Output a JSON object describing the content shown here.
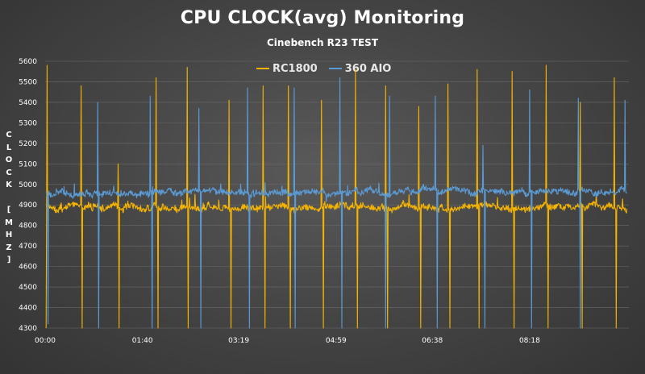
{
  "chart_data": {
    "type": "line",
    "title": "CPU CLOCK(avg) Monitoring",
    "subtitle": "Cinebench R23 TEST",
    "ylabel": "CLOCK [MHZ]",
    "xlabel": "",
    "ylim": [
      4300,
      5600
    ],
    "yticks": [
      4300,
      4400,
      4500,
      4600,
      4700,
      4800,
      4900,
      5000,
      5100,
      5200,
      5300,
      5400,
      5500,
      5600
    ],
    "xlim": [
      0,
      600
    ],
    "xticks": [
      {
        "label": "00:00",
        "value": 0
      },
      {
        "label": "01:40",
        "value": 100
      },
      {
        "label": "03:19",
        "value": 199
      },
      {
        "label": "04:59",
        "value": 299
      },
      {
        "label": "06:38",
        "value": 398
      },
      {
        "label": "08:18",
        "value": 498
      }
    ],
    "grid": true,
    "legend_position": "top-center",
    "series": [
      {
        "name": "RC1800",
        "color": "#f5b400",
        "baseline": 4890,
        "noise": 28,
        "dips": [
          {
            "t": 1,
            "min": 4300
          },
          {
            "t": 38,
            "min": 4300
          },
          {
            "t": 76,
            "min": 4300
          },
          {
            "t": 116,
            "min": 4300
          },
          {
            "t": 147,
            "min": 4300
          },
          {
            "t": 191,
            "min": 4300
          },
          {
            "t": 226,
            "min": 4300
          },
          {
            "t": 252,
            "min": 4300
          },
          {
            "t": 286,
            "min": 4300
          },
          {
            "t": 321,
            "min": 4300
          },
          {
            "t": 352,
            "min": 4300
          },
          {
            "t": 386,
            "min": 4300
          },
          {
            "t": 416,
            "min": 4300
          },
          {
            "t": 446,
            "min": 4300
          },
          {
            "t": 482,
            "min": 4300
          },
          {
            "t": 517,
            "min": 4300
          },
          {
            "t": 552,
            "min": 4300
          },
          {
            "t": 587,
            "min": 4300
          }
        ],
        "spikes": [
          {
            "t": 2,
            "max": 5580
          },
          {
            "t": 37,
            "max": 5480
          },
          {
            "t": 75,
            "max": 5100
          },
          {
            "t": 114,
            "max": 5520
          },
          {
            "t": 146,
            "max": 5570
          },
          {
            "t": 189,
            "max": 5410
          },
          {
            "t": 224,
            "max": 5480
          },
          {
            "t": 250,
            "max": 5480
          },
          {
            "t": 284,
            "max": 5410
          },
          {
            "t": 319,
            "max": 5560
          },
          {
            "t": 350,
            "max": 5480
          },
          {
            "t": 384,
            "max": 5380
          },
          {
            "t": 414,
            "max": 5490
          },
          {
            "t": 444,
            "max": 5560
          },
          {
            "t": 480,
            "max": 5550
          },
          {
            "t": 515,
            "max": 5580
          },
          {
            "t": 550,
            "max": 5400
          },
          {
            "t": 585,
            "max": 5520
          }
        ]
      },
      {
        "name": "360 AIO",
        "color": "#5b9bd5",
        "baseline": 4965,
        "noise": 26,
        "dips": [
          {
            "t": 3,
            "min": 4320
          },
          {
            "t": 55,
            "min": 4300
          },
          {
            "t": 110,
            "min": 4300
          },
          {
            "t": 160,
            "min": 4300
          },
          {
            "t": 210,
            "min": 4300
          },
          {
            "t": 257,
            "min": 4300
          },
          {
            "t": 305,
            "min": 4300
          },
          {
            "t": 350,
            "min": 4300
          },
          {
            "t": 403,
            "min": 4300
          },
          {
            "t": 452,
            "min": 4300
          },
          {
            "t": 500,
            "min": 4300
          },
          {
            "t": 550,
            "min": 4300
          }
        ],
        "spikes": [
          {
            "t": 54,
            "max": 5400
          },
          {
            "t": 108,
            "max": 5430
          },
          {
            "t": 158,
            "max": 5370
          },
          {
            "t": 208,
            "max": 5470
          },
          {
            "t": 256,
            "max": 5470
          },
          {
            "t": 303,
            "max": 5520
          },
          {
            "t": 354,
            "max": 5430
          },
          {
            "t": 401,
            "max": 5430
          },
          {
            "t": 450,
            "max": 5190
          },
          {
            "t": 498,
            "max": 5460
          },
          {
            "t": 548,
            "max": 5420
          },
          {
            "t": 596,
            "max": 5410
          }
        ]
      }
    ]
  }
}
